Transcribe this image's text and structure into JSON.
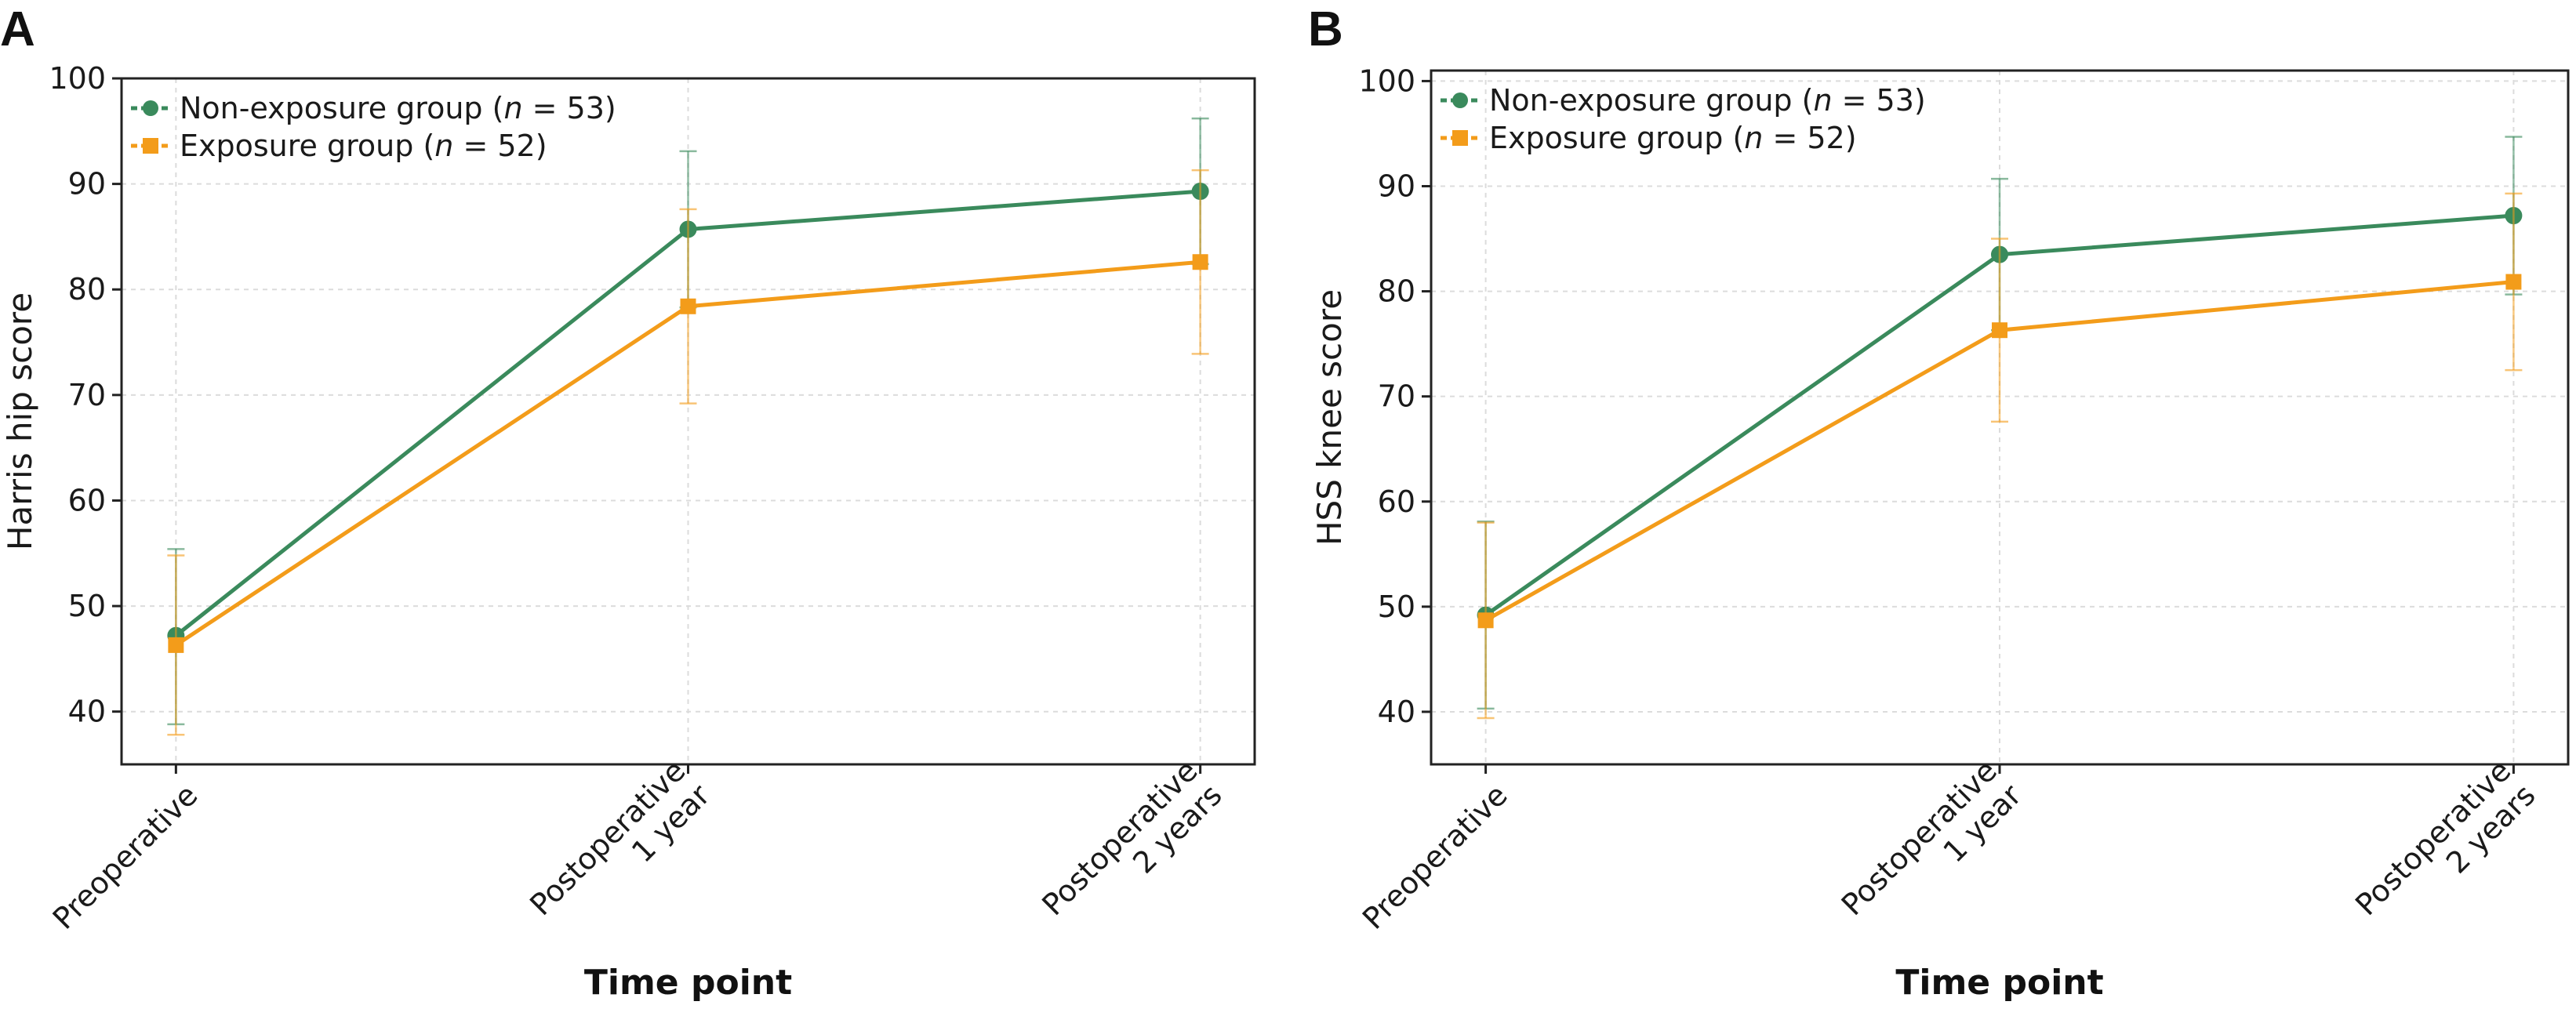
{
  "chart_data": [
    {
      "panel_label": "A",
      "type": "line",
      "title": "",
      "xlabel": "Time point",
      "ylabel": "Harris hip score",
      "ylim": [
        35,
        100
      ],
      "yticks": [
        40,
        50,
        60,
        70,
        80,
        90,
        100
      ],
      "categories": [
        [
          "Preoperative"
        ],
        [
          "Postoperative",
          "1 year"
        ],
        [
          "Postoperative",
          "2 years"
        ]
      ],
      "grid": true,
      "legend_position": "top-left",
      "series": [
        {
          "name": "Non-exposure group (n = 53)",
          "legend_parts": [
            "Non-exposure group (",
            "n",
            " = 53)"
          ],
          "color": "#3a8a5c",
          "marker": "circle",
          "values": [
            47.2,
            85.7,
            89.3
          ],
          "error_low": [
            38.8,
            78.3,
            82.4
          ],
          "error_high": [
            55.4,
            93.1,
            96.2
          ]
        },
        {
          "name": "Exposure group (n = 52)",
          "legend_parts": [
            "Exposure group (",
            "n",
            " = 52)"
          ],
          "color": "#f39c1a",
          "marker": "square",
          "values": [
            46.3,
            78.4,
            82.6
          ],
          "error_low": [
            37.8,
            69.2,
            73.9
          ],
          "error_high": [
            54.8,
            87.6,
            91.3
          ]
        }
      ]
    },
    {
      "panel_label": "B",
      "type": "line",
      "title": "",
      "xlabel": "Time point",
      "ylabel": "HSS knee score",
      "ylim": [
        35,
        101
      ],
      "yticks": [
        40,
        50,
        60,
        70,
        80,
        90,
        100
      ],
      "categories": [
        [
          "Preoperative"
        ],
        [
          "Postoperative",
          "1 year"
        ],
        [
          "Postoperative",
          "2 years"
        ]
      ],
      "grid": true,
      "legend_position": "top-left",
      "series": [
        {
          "name": "Non-exposure group (n = 53)",
          "legend_parts": [
            "Non-exposure group (",
            "n",
            " = 53)"
          ],
          "color": "#3a8a5c",
          "marker": "circle",
          "values": [
            49.2,
            83.5,
            87.2
          ],
          "error_low": [
            40.3,
            76.3,
            79.7
          ],
          "error_high": [
            58.1,
            90.7,
            94.7
          ]
        },
        {
          "name": "Exposure group (n = 52)",
          "legend_parts": [
            "Exposure group (",
            "n",
            " = 52)"
          ],
          "color": "#f39c1a",
          "marker": "square",
          "values": [
            48.7,
            76.3,
            80.9
          ],
          "error_low": [
            39.4,
            67.6,
            72.5
          ],
          "error_high": [
            58.0,
            85.0,
            89.3
          ]
        }
      ]
    }
  ]
}
